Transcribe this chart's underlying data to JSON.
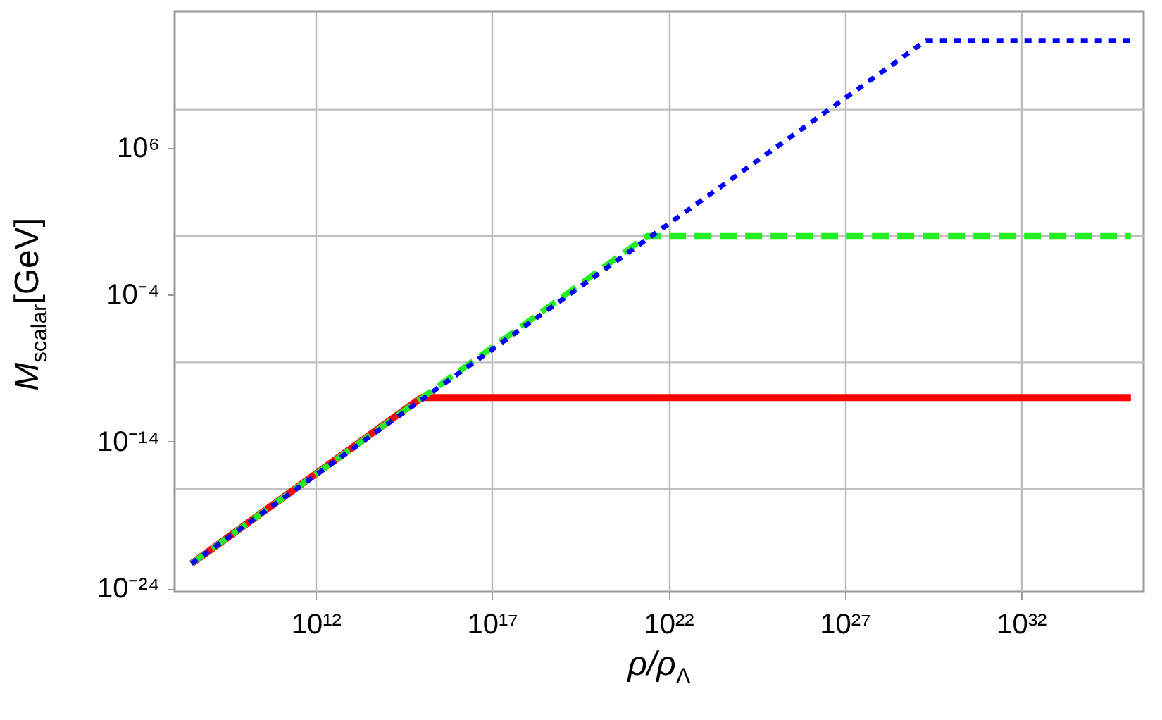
{
  "chart_data": {
    "type": "line",
    "xlabel": "ρ/ρ$_{Λ}$",
    "ylabel": "M$_{scalar}$[GeV]",
    "log": "xy",
    "grid": "x",
    "xlim": [
      100000000.0,
      3e+35
    ],
    "ylim": [
      6e-25,
      2000000000000000.0
    ],
    "xticks": [
      {
        "value": 1000000000000.0,
        "label": "10¹²"
      },
      {
        "value": 1e+17,
        "label": "10¹⁷"
      },
      {
        "value": 1e+22,
        "label": "10²²"
      },
      {
        "value": 1e+27,
        "label": "10²⁷"
      },
      {
        "value": 1e+32,
        "label": "10³²"
      }
    ],
    "yticks": [
      {
        "value": 1e-24,
        "label": "10⁻²⁴"
      },
      {
        "value": 1e-14,
        "label": "10⁻¹⁴"
      },
      {
        "value": 0.0001,
        "label": "10⁻⁴"
      },
      {
        "value": 1000000.0,
        "label": "10⁶"
      }
    ],
    "ref_lines": [
      {
        "axis": "y",
        "value": 6e-18,
        "color": "#c0c0c0"
      },
      {
        "axis": "y",
        "value": 2.5e-09,
        "color": "#c0c0c0"
      },
      {
        "axis": "y",
        "value": 1,
        "color": "#c0c0c0"
      },
      {
        "axis": "y",
        "value": 400000000.0,
        "color": "#c0c0c0"
      }
    ],
    "series": [
      {
        "color": "#ff0000",
        "line_style": "solid",
        "x": [
          300000000.0,
          1000000000000000.0,
          1.3e+35
        ],
        "values": [
          5e-23,
          1e-11,
          1e-11
        ]
      },
      {
        "color": "#22ee22",
        "line_style": "dashed",
        "x": [
          300000000.0,
          2.5e+21,
          1.3e+35
        ],
        "values": [
          5e-23,
          1,
          1
        ]
      },
      {
        "color": "#0000ff",
        "line_style": "dotted",
        "x": [
          300000000.0,
          2e+29,
          1.3e+35
        ],
        "values": [
          5e-23,
          20000000000000.0,
          20000000000000.0
        ]
      }
    ]
  }
}
